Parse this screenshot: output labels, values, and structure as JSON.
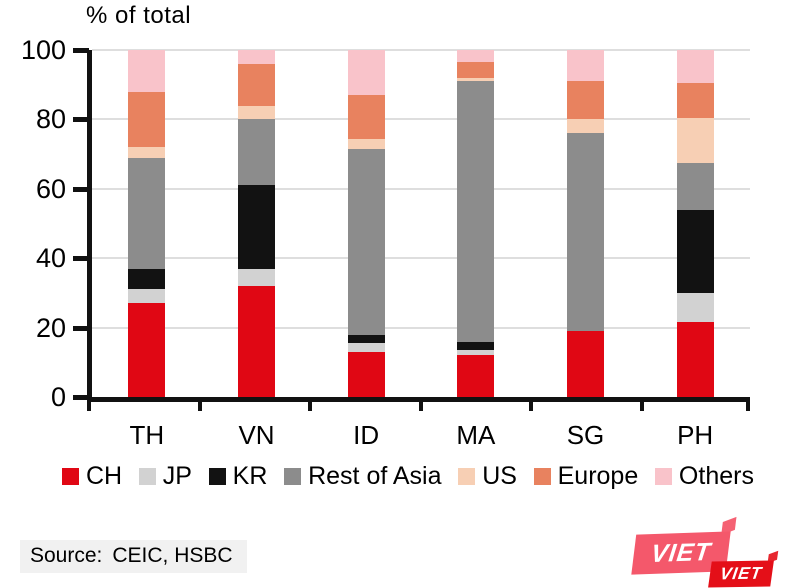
{
  "chart_title": "% of total",
  "source": {
    "label": "Source:",
    "value": "CEIC, HSBC"
  },
  "logo": {
    "big_text": "VIET",
    "small_text": "VIET",
    "big_color": "#f4586b",
    "small_color": "#e40f18"
  },
  "colors": {
    "axis": "#111111",
    "gridline": "#dedede",
    "text": "#000000"
  },
  "chart_data": {
    "type": "bar",
    "stacked": true,
    "title": "% of total",
    "xlabel": "",
    "ylabel": "% of total",
    "ylim": [
      0,
      100
    ],
    "yticks": [
      0,
      20,
      40,
      60,
      80,
      100
    ],
    "grid": true,
    "legend_position": "bottom",
    "categories": [
      "TH",
      "VN",
      "ID",
      "MA",
      "SG",
      "PH"
    ],
    "series": [
      {
        "name": "CH",
        "color": "#e00714",
        "values": [
          27,
          32,
          13,
          12,
          19,
          21.5
        ]
      },
      {
        "name": "JP",
        "color": "#d2d2d2",
        "values": [
          4,
          5,
          2.5,
          1.5,
          0,
          8.5
        ]
      },
      {
        "name": "KR",
        "color": "#121212",
        "values": [
          6,
          24,
          2.5,
          2.5,
          0,
          24
        ]
      },
      {
        "name": "Rest of Asia",
        "color": "#8c8c8c",
        "values": [
          32,
          19,
          53.5,
          75,
          57,
          13.5
        ]
      },
      {
        "name": "US",
        "color": "#f7cfb4",
        "values": [
          3,
          4,
          3,
          1,
          4,
          13
        ]
      },
      {
        "name": "Europe",
        "color": "#e8825f",
        "values": [
          16,
          12,
          12.5,
          4.5,
          11,
          10
        ]
      },
      {
        "name": "Others",
        "color": "#f9c3ca",
        "values": [
          12,
          4,
          13,
          3.5,
          9,
          9.5
        ]
      }
    ]
  }
}
